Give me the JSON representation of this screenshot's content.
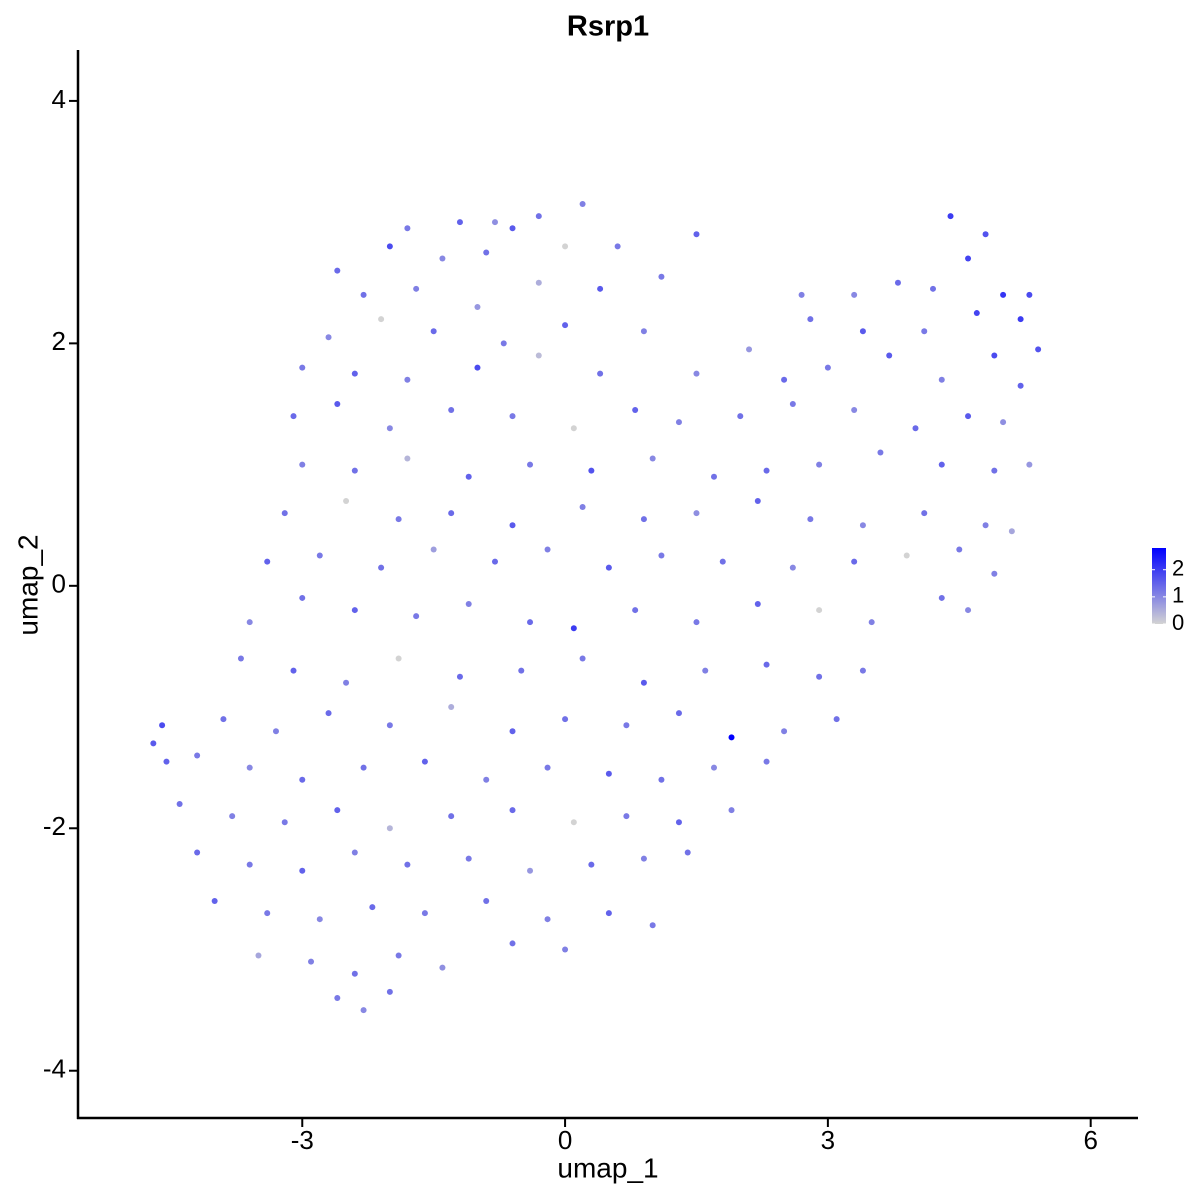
{
  "chart_data": {
    "type": "scatter",
    "title": "Rsrp1",
    "x_label": "umap_1",
    "y_label": "umap_2",
    "x": [
      -1.8,
      -1.2,
      -0.8,
      -0.3,
      0.2,
      -0.6,
      -2.6,
      -2.0,
      -1.4,
      -0.9,
      0.0,
      0.6,
      1.5,
      4.4,
      4.8,
      4.6,
      -2.3,
      -1.7,
      -1.0,
      -0.3,
      0.4,
      1.1,
      3.3,
      3.8,
      4.2,
      5.0,
      5.3,
      2.7,
      -2.7,
      -2.1,
      -1.5,
      -0.7,
      0.0,
      0.9,
      2.8,
      3.4,
      4.1,
      4.7,
      5.2,
      2.1,
      5.4,
      -3.0,
      -2.4,
      -1.8,
      -1.0,
      -0.3,
      0.4,
      1.5,
      2.5,
      3.0,
      3.7,
      4.3,
      4.9,
      5.2,
      -3.1,
      -2.6,
      -2.0,
      -1.3,
      -0.6,
      0.1,
      0.8,
      1.3,
      2.0,
      2.6,
      3.3,
      4.0,
      4.6,
      5.0,
      -3.0,
      -2.4,
      -1.8,
      -1.1,
      -0.4,
      0.3,
      1.0,
      1.7,
      2.3,
      2.9,
      3.6,
      4.3,
      4.9,
      5.3,
      -3.2,
      -2.5,
      -1.9,
      -1.3,
      -0.6,
      0.2,
      0.9,
      1.5,
      2.2,
      2.8,
      3.4,
      4.1,
      4.8,
      5.1,
      -3.4,
      -2.8,
      -2.1,
      -1.5,
      -0.8,
      -0.2,
      0.5,
      1.1,
      1.8,
      2.6,
      3.3,
      3.9,
      4.5,
      4.9,
      -3.6,
      -3.0,
      -2.4,
      -1.7,
      -1.1,
      -0.4,
      0.1,
      0.8,
      1.5,
      2.2,
      2.9,
      3.5,
      4.3,
      4.6,
      -3.7,
      -3.1,
      -2.5,
      -1.9,
      -1.2,
      -0.5,
      0.2,
      0.9,
      1.6,
      2.3,
      2.9,
      3.4,
      -4.7,
      -4.6,
      -4.55,
      -3.9,
      -3.3,
      -2.7,
      -2.0,
      -1.3,
      -0.6,
      0.0,
      0.7,
      1.3,
      1.9,
      2.5,
      3.1,
      -4.2,
      -3.6,
      -3.0,
      -2.3,
      -1.6,
      -0.9,
      -0.2,
      0.5,
      1.1,
      1.7,
      2.3,
      -4.4,
      -3.8,
      -3.2,
      -2.6,
      -2.0,
      -1.3,
      -0.6,
      0.1,
      0.7,
      1.3,
      1.9,
      -4.2,
      -3.6,
      -3.0,
      -2.4,
      -1.8,
      -1.1,
      -0.4,
      0.3,
      0.9,
      1.4,
      -4.0,
      -3.4,
      -2.8,
      -2.2,
      -1.6,
      -0.9,
      -0.2,
      0.5,
      1.0,
      -3.5,
      -2.9,
      -2.4,
      -1.9,
      -1.4,
      -0.6,
      0.0,
      -2.6,
      -2.3,
      -2.0
    ],
    "y": [
      2.95,
      3.0,
      3.0,
      3.05,
      3.15,
      2.95,
      2.6,
      2.8,
      2.7,
      2.75,
      2.8,
      2.8,
      2.9,
      3.05,
      2.9,
      2.7,
      2.4,
      2.45,
      2.3,
      2.5,
      2.45,
      2.55,
      2.4,
      2.5,
      2.45,
      2.4,
      2.4,
      2.4,
      2.05,
      2.2,
      2.1,
      2.0,
      2.15,
      2.1,
      2.2,
      2.1,
      2.1,
      2.25,
      2.2,
      1.95,
      1.95,
      1.8,
      1.75,
      1.7,
      1.8,
      1.9,
      1.75,
      1.75,
      1.7,
      1.8,
      1.9,
      1.7,
      1.9,
      1.65,
      1.4,
      1.5,
      1.3,
      1.45,
      1.4,
      1.3,
      1.45,
      1.35,
      1.4,
      1.5,
      1.45,
      1.3,
      1.4,
      1.35,
      1.0,
      0.95,
      1.05,
      0.9,
      1.0,
      0.95,
      1.05,
      0.9,
      0.95,
      1.0,
      1.1,
      1.0,
      0.95,
      1.0,
      0.6,
      0.7,
      0.55,
      0.6,
      0.5,
      0.65,
      0.55,
      0.6,
      0.7,
      0.55,
      0.5,
      0.6,
      0.5,
      0.45,
      0.2,
      0.25,
      0.15,
      0.3,
      0.2,
      0.3,
      0.15,
      0.25,
      0.2,
      0.15,
      0.2,
      0.25,
      0.3,
      0.1,
      -0.3,
      -0.1,
      -0.2,
      -0.25,
      -0.15,
      -0.3,
      -0.35,
      -0.2,
      -0.3,
      -0.15,
      -0.2,
      -0.3,
      -0.1,
      -0.2,
      -0.6,
      -0.7,
      -0.8,
      -0.6,
      -0.75,
      -0.7,
      -0.6,
      -0.8,
      -0.7,
      -0.65,
      -0.75,
      -0.7,
      -1.3,
      -1.15,
      -1.45,
      -1.1,
      -1.2,
      -1.05,
      -1.15,
      -1.0,
      -1.2,
      -1.1,
      -1.15,
      -1.05,
      -1.25,
      -1.2,
      -1.1,
      -1.4,
      -1.5,
      -1.6,
      -1.5,
      -1.45,
      -1.6,
      -1.5,
      -1.55,
      -1.6,
      -1.5,
      -1.45,
      -1.8,
      -1.9,
      -1.95,
      -1.85,
      -2.0,
      -1.9,
      -1.85,
      -1.95,
      -1.9,
      -1.95,
      -1.85,
      -2.2,
      -2.3,
      -2.35,
      -2.2,
      -2.3,
      -2.25,
      -2.35,
      -2.3,
      -2.25,
      -2.2,
      -2.6,
      -2.7,
      -2.75,
      -2.65,
      -2.7,
      -2.6,
      -2.75,
      -2.7,
      -2.8,
      -3.05,
      -3.1,
      -3.2,
      -3.05,
      -3.15,
      -2.95,
      -3.0,
      -3.4,
      -3.5,
      -3.35
    ],
    "values": [
      1.2,
      1.5,
      0.9,
      1.3,
      1.1,
      1.6,
      1.4,
      1.8,
      1.0,
      1.3,
      0,
      1.2,
      1.5,
      2.0,
      1.7,
      1.9,
      1.3,
      1.1,
      0.8,
      0.5,
      1.6,
      1.2,
      1.0,
      1.4,
      1.3,
      2.1,
      1.8,
      1.1,
      1.0,
      0,
      1.4,
      1.2,
      1.5,
      1.1,
      1.3,
      1.6,
      1.2,
      1.9,
      2.0,
      0.8,
      1.7,
      1.2,
      1.5,
      1.1,
      1.8,
      0.3,
      1.3,
      1.0,
      1.4,
      1.2,
      1.6,
      1.1,
      1.8,
      1.5,
      1.4,
      1.6,
      1.0,
      1.3,
      1.2,
      0,
      1.5,
      1.1,
      1.3,
      1.2,
      1.0,
      1.4,
      1.6,
      0.9,
      1.1,
      1.3,
      0.4,
      1.5,
      1.2,
      1.7,
      1.0,
      1.3,
      1.4,
      1.1,
      1.2,
      1.5,
      1.3,
      0.8,
      1.3,
      0,
      1.2,
      1.4,
      1.6,
      1.1,
      1.3,
      0.9,
      1.5,
      1.2,
      1.0,
      1.3,
      1.1,
      0.6,
      1.5,
      1.2,
      1.3,
      0.7,
      1.4,
      1.1,
      1.6,
      1.2,
      1.3,
      1.0,
      1.4,
      0,
      1.2,
      1.1,
      1.0,
      1.3,
      1.5,
      1.2,
      1.1,
      1.4,
      2.0,
      1.3,
      1.2,
      1.5,
      0,
      1.1,
      1.3,
      1.0,
      1.2,
      1.5,
      1.1,
      0,
      1.4,
      1.3,
      1.2,
      1.6,
      1.1,
      1.4,
      1.3,
      1.2,
      1.6,
      1.8,
      1.5,
      1.3,
      1.1,
      1.4,
      1.2,
      0.5,
      1.5,
      1.3,
      1.2,
      1.4,
      2.8,
      1.1,
      1.3,
      1.2,
      1.0,
      1.4,
      1.3,
      1.5,
      1.1,
      1.2,
      1.6,
      1.3,
      1.0,
      1.2,
      1.3,
      1.1,
      1.2,
      1.5,
      0.4,
      1.3,
      1.4,
      0,
      1.2,
      1.5,
      1.1,
      1.4,
      1.2,
      1.5,
      1.1,
      1.3,
      1.2,
      0.8,
      1.4,
      1.1,
      1.3,
      1.5,
      1.2,
      1.0,
      1.4,
      1.2,
      1.3,
      1.1,
      1.5,
      1.2,
      0.6,
      1.1,
      1.3,
      1.2,
      0.9,
      1.3,
      1.1,
      1.2,
      1.0,
      1.3
    ],
    "color_low": "#d3d3d3",
    "color_high": "#0000ff",
    "color_lim": [
      0,
      2.8
    ],
    "color_ticks": [
      0,
      1,
      2
    ],
    "xlim": [
      -5.56,
      6.54
    ],
    "xticks": [
      -3,
      0,
      3,
      6
    ],
    "ylim": [
      -4.39,
      4.42
    ],
    "yticks": [
      -4,
      -2,
      0,
      2,
      4
    ]
  }
}
